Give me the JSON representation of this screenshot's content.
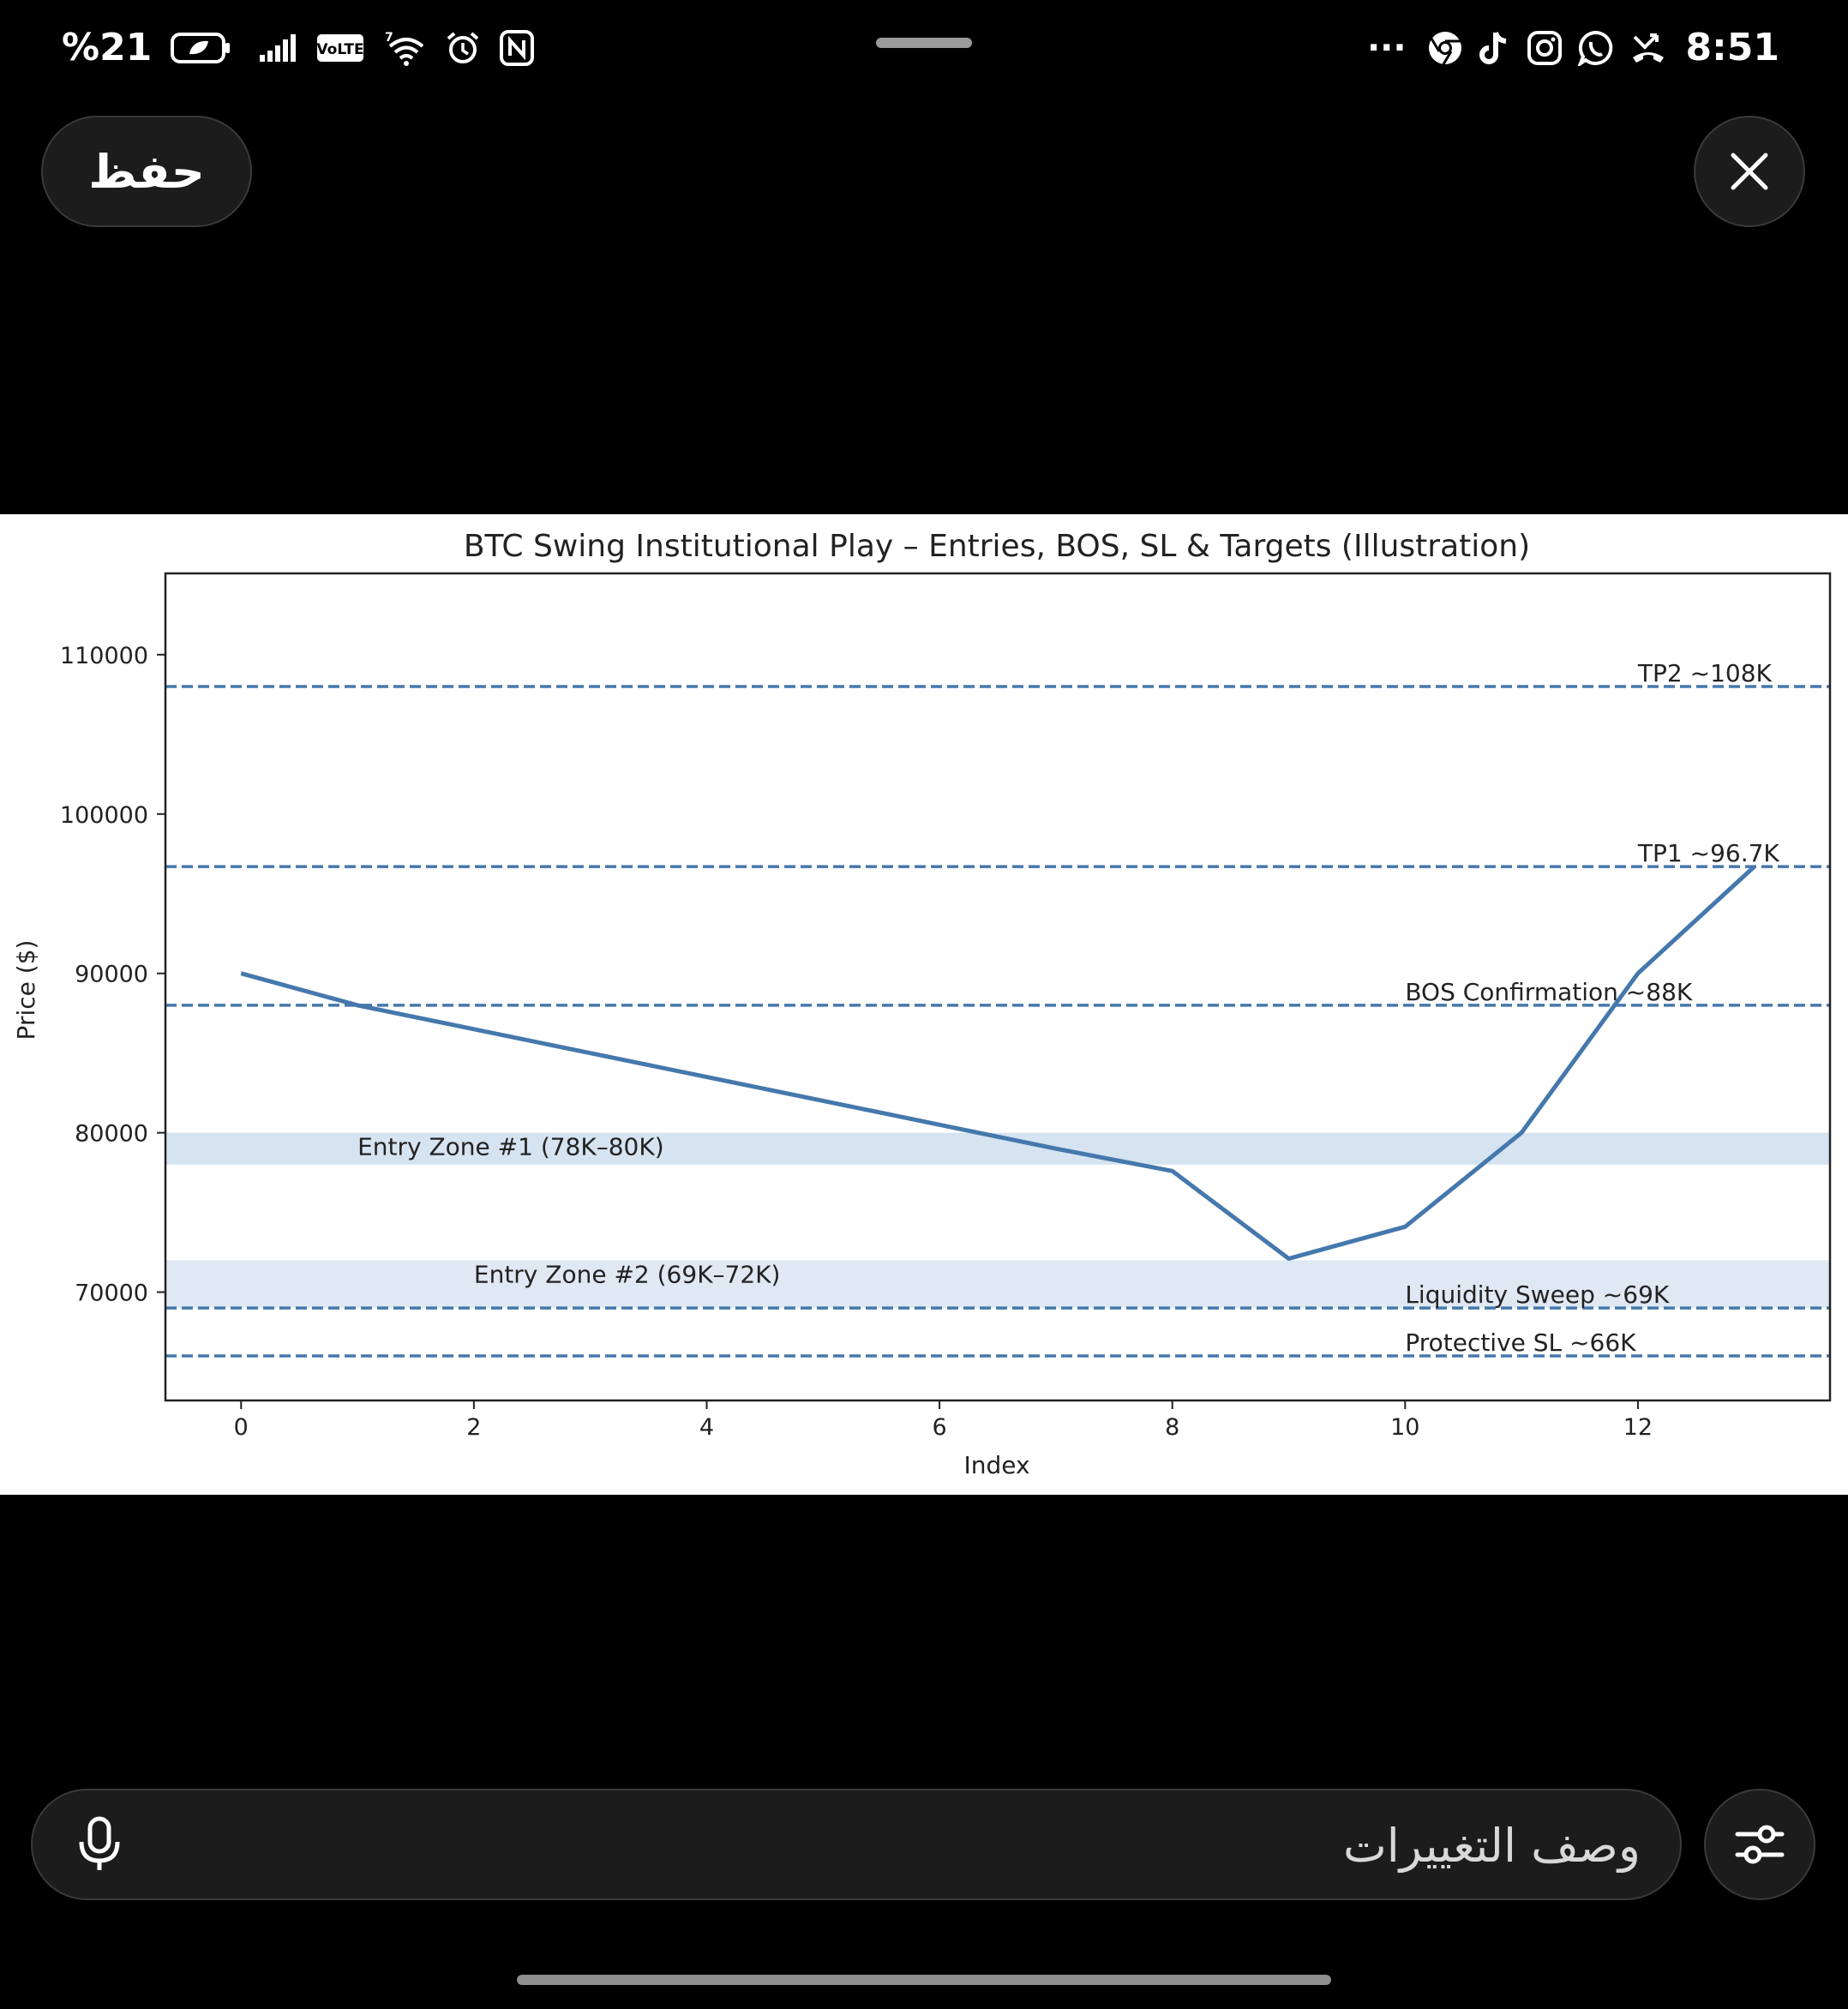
{
  "status_bar": {
    "battery": "%21",
    "volte": "VoLTE",
    "time": "8:51",
    "overflow": "···",
    "icons": [
      "battery-icon",
      "signal-icon",
      "volte-icon",
      "wifi-icon",
      "alarm-icon",
      "nfc-icon",
      "chrome-icon",
      "tiktok-icon",
      "instagram-icon",
      "whatsapp-icon",
      "missed-call-icon"
    ]
  },
  "header": {
    "save_label": "حفظ",
    "close_icon": "close-icon"
  },
  "prompt": {
    "placeholder": "وصف التغييرات",
    "mic_icon": "mic-icon",
    "settings_icon": "sliders-icon"
  },
  "chart_data": {
    "type": "line",
    "title": "BTC Swing Institutional Play – Entries, BOS, SL & Targets (Illustration)",
    "xlabel": "Index",
    "ylabel": "Price ($)",
    "xlim": [
      -0.65,
      13.65
    ],
    "ylim": [
      63200,
      115100
    ],
    "xticks": [
      0,
      2,
      4,
      6,
      8,
      10,
      12
    ],
    "yticks": [
      70000,
      80000,
      90000,
      100000,
      110000
    ],
    "grid": false,
    "series": [
      {
        "color": "#4578ac",
        "x": [
          0,
          1,
          2,
          3,
          4,
          5,
          6,
          7,
          8,
          9,
          10,
          11,
          12,
          13
        ],
        "y": [
          90000,
          88000,
          86500,
          85000,
          83500,
          82000,
          80500,
          79000,
          77600,
          72100,
          74100,
          80000,
          90000,
          96700
        ]
      }
    ],
    "hlines": [
      {
        "y": 108000,
        "label": "TP2 ~108K",
        "label_x": 12
      },
      {
        "y": 96700,
        "label": "TP1 ~96.7K",
        "label_x": 12
      },
      {
        "y": 88000,
        "label": "BOS Confirmation ~88K",
        "label_x": 10
      },
      {
        "y": 69000,
        "label": "Liquidity Sweep ~69K",
        "label_x": 10
      },
      {
        "y": 66000,
        "label": "Protective SL ~66K",
        "label_x": 10
      }
    ],
    "bands": [
      {
        "y0": 78000,
        "y1": 80000,
        "label": "Entry Zone #1 (78K–80K)",
        "label_x": 1,
        "color": "#d6e3f1"
      },
      {
        "y0": 69000,
        "y1": 72000,
        "label": "Entry Zone #2 (69K–72K)",
        "label_x": 2,
        "color": "#dfe8f3"
      }
    ],
    "line_color": "#4578ac"
  }
}
